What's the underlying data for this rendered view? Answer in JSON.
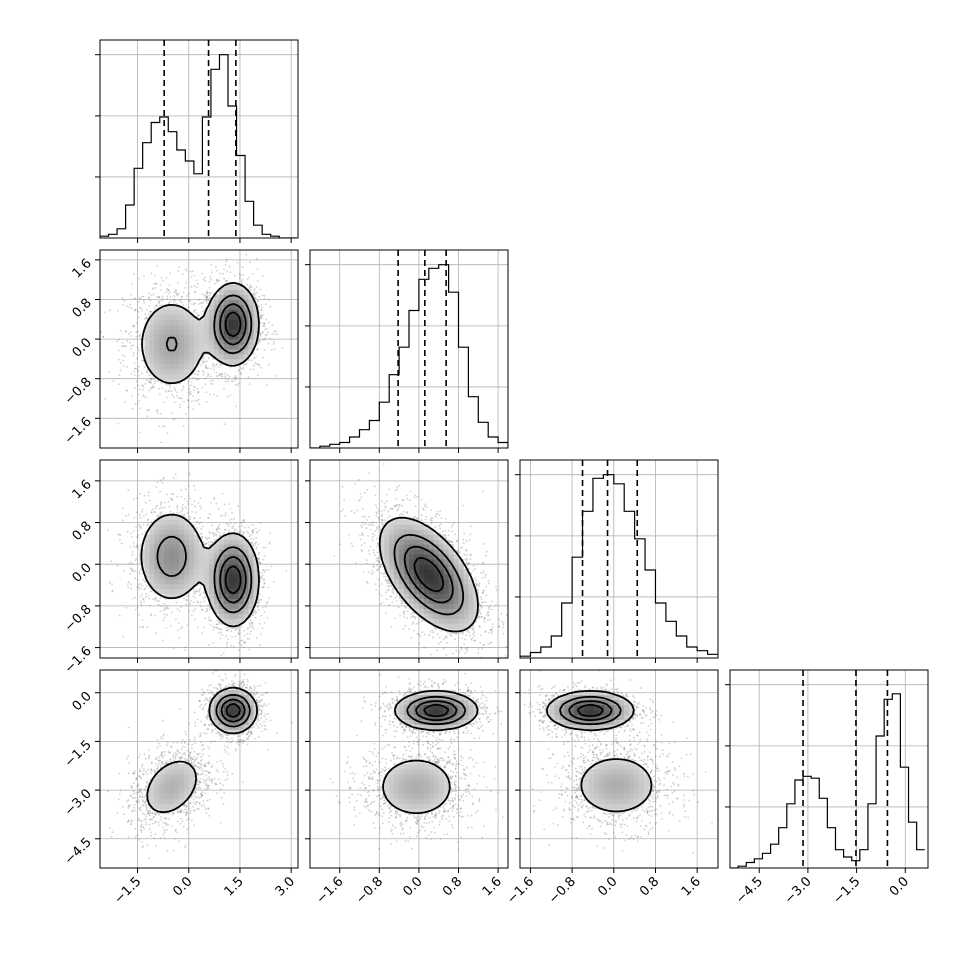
{
  "chart_data": {
    "type": "corner",
    "n_params": 4,
    "grid": true,
    "params": [
      {
        "index": 0,
        "range": [
          -2.6,
          3.2
        ],
        "ticks": [
          -1.5,
          0.0,
          1.5,
          3.0
        ],
        "tick_labels": [
          "−1.5",
          "0.0",
          "1.5",
          "3.0"
        ],
        "quantiles": [
          -0.72,
          0.58,
          1.38
        ],
        "hist_bin_start": -2.6,
        "hist_bin_width": 0.25,
        "hist": [
          0.01,
          0.02,
          0.05,
          0.18,
          0.38,
          0.52,
          0.63,
          0.66,
          0.58,
          0.48,
          0.42,
          0.35,
          0.66,
          0.92,
          1.0,
          0.72,
          0.45,
          0.2,
          0.07,
          0.02,
          0.01,
          0.0,
          0.0
        ]
      },
      {
        "index": 1,
        "range": [
          -2.2,
          1.8
        ],
        "ticks": [
          -1.6,
          -0.8,
          0.0,
          0.8,
          1.6
        ],
        "tick_labels": [
          "−1.6",
          "−0.8",
          "0.0",
          "0.8",
          "1.6"
        ],
        "quantiles": [
          -0.42,
          0.12,
          0.55
        ],
        "hist_bin_start": -2.2,
        "hist_bin_width": 0.2,
        "hist": [
          0.0,
          0.01,
          0.02,
          0.03,
          0.06,
          0.1,
          0.15,
          0.25,
          0.4,
          0.55,
          0.75,
          0.92,
          0.98,
          1.0,
          0.85,
          0.55,
          0.28,
          0.14,
          0.06,
          0.03,
          0.01
        ]
      },
      {
        "index": 2,
        "range": [
          -1.8,
          2.0
        ],
        "ticks": [
          -1.6,
          -0.8,
          0.0,
          0.8,
          1.6
        ],
        "tick_labels": [
          "−1.6",
          "−0.8",
          "0.0",
          "0.8",
          "1.6"
        ],
        "quantiles": [
          -0.6,
          -0.12,
          0.45
        ],
        "hist_bin_start": -1.8,
        "hist_bin_width": 0.2,
        "hist": [
          0.01,
          0.03,
          0.06,
          0.12,
          0.3,
          0.55,
          0.8,
          0.98,
          1.0,
          0.95,
          0.8,
          0.65,
          0.48,
          0.3,
          0.2,
          0.12,
          0.06,
          0.04,
          0.02
        ]
      },
      {
        "index": 3,
        "range": [
          -5.4,
          0.7
        ],
        "ticks": [
          -4.5,
          -3.0,
          -1.5,
          0.0
        ],
        "tick_labels": [
          "−4.5",
          "−3.0",
          "−1.5",
          "0.0"
        ],
        "quantiles": [
          -3.15,
          -1.52,
          -0.55
        ],
        "hist_bin_start": -5.4,
        "hist_bin_width": 0.25,
        "hist": [
          0.0,
          0.01,
          0.03,
          0.05,
          0.08,
          0.13,
          0.22,
          0.35,
          0.48,
          0.5,
          0.49,
          0.38,
          0.22,
          0.1,
          0.06,
          0.04,
          0.1,
          0.35,
          0.72,
          0.92,
          0.95,
          0.55,
          0.25,
          0.1
        ]
      }
    ],
    "pairs": [
      {
        "x": 0,
        "y": 1,
        "modes": [
          {
            "mx": -0.5,
            "my": -0.1,
            "sx": 0.6,
            "sy": 0.55,
            "r": 0.0,
            "w": 0.45
          },
          {
            "mx": 1.3,
            "my": 0.3,
            "sx": 0.38,
            "sy": 0.42,
            "r": 0.0,
            "w": 0.55
          }
        ]
      },
      {
        "x": 0,
        "y": 2,
        "modes": [
          {
            "mx": -0.5,
            "my": 0.15,
            "sx": 0.55,
            "sy": 0.5,
            "r": 0.0,
            "w": 0.45
          },
          {
            "mx": 1.3,
            "my": -0.3,
            "sx": 0.38,
            "sy": 0.45,
            "r": 0.0,
            "w": 0.55
          }
        ]
      },
      {
        "x": 1,
        "y": 2,
        "modes": [
          {
            "mx": 0.2,
            "my": -0.2,
            "sx": 0.5,
            "sy": 0.55,
            "r": -0.55,
            "w": 1.0
          }
        ]
      },
      {
        "x": 0,
        "y": 3,
        "modes": [
          {
            "mx": -0.5,
            "my": -2.9,
            "sx": 0.55,
            "sy": 0.6,
            "r": 0.35,
            "w": 0.45
          },
          {
            "mx": 1.3,
            "my": -0.55,
            "sx": 0.35,
            "sy": 0.35,
            "r": 0.0,
            "w": 0.55
          }
        ]
      },
      {
        "x": 1,
        "y": 3,
        "modes": [
          {
            "mx": 0.35,
            "my": -0.55,
            "sx": 0.42,
            "sy": 0.3,
            "r": 0.0,
            "w": 0.55
          },
          {
            "mx": -0.05,
            "my": -2.9,
            "sx": 0.5,
            "sy": 0.6,
            "r": 0.0,
            "w": 0.45
          }
        ]
      },
      {
        "x": 2,
        "y": 3,
        "modes": [
          {
            "mx": -0.45,
            "my": -0.55,
            "sx": 0.42,
            "sy": 0.3,
            "r": 0.0,
            "w": 0.55
          },
          {
            "mx": 0.05,
            "my": -2.85,
            "sx": 0.5,
            "sy": 0.6,
            "r": 0.0,
            "w": 0.45
          }
        ]
      }
    ]
  }
}
